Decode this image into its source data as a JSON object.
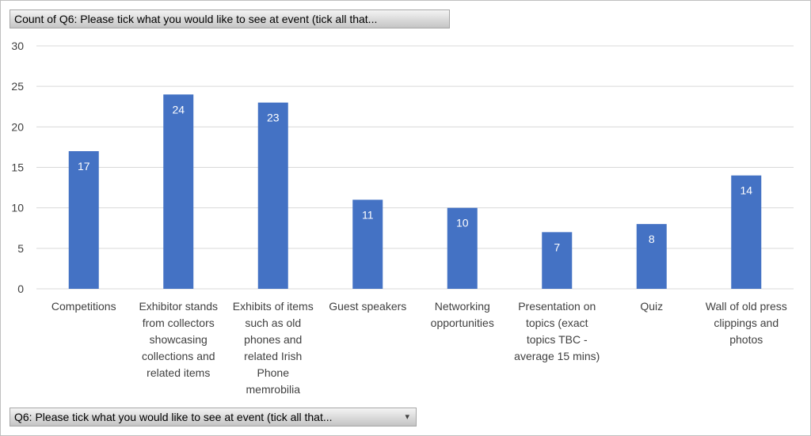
{
  "pivot": {
    "value_field": "Count of Q6: Please tick what you would like to see at event (tick all that...",
    "axis_field": "Q6: Please tick what you would like to see at event (tick all that...",
    "dropdown_icon": "dropdown-arrow-icon"
  },
  "chart_data": {
    "type": "bar",
    "title": "",
    "xlabel": "",
    "ylabel": "",
    "ylim": [
      0,
      30
    ],
    "yticks": [
      0,
      5,
      10,
      15,
      20,
      25,
      30
    ],
    "grid": true,
    "legend": "none",
    "bar_color": "#4472C4",
    "categories": [
      [
        "Competitions"
      ],
      [
        "Exhibitor stands",
        "from collectors",
        "showcasing",
        "collections and",
        "related items"
      ],
      [
        "Exhibits of items",
        "such as old",
        "phones and",
        "related Irish",
        "Phone",
        "memrobilia"
      ],
      [
        "Guest speakers"
      ],
      [
        "Networking",
        "opportunities"
      ],
      [
        "Presentation on",
        "topics (exact",
        "topics TBC -",
        "average 15 mins)"
      ],
      [
        "Quiz"
      ],
      [
        "Wall of old press",
        "clippings and",
        "photos"
      ]
    ],
    "values": [
      17,
      24,
      23,
      11,
      10,
      7,
      8,
      14
    ]
  }
}
